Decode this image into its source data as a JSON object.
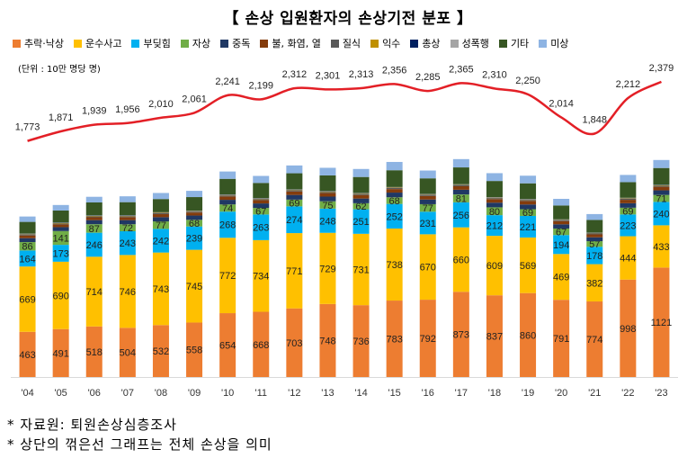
{
  "chart_data": {
    "type": "bar",
    "stacked": true,
    "title": "【 손상 입원환자의 손상기전 분포 】",
    "unit_label": "(단위 : 10만 명당 명)",
    "categories": [
      "'04",
      "'05",
      "'06",
      "'07",
      "'08",
      "'09",
      "'10",
      "'11",
      "'12",
      "'13",
      "'14",
      "'15",
      "'16",
      "'17",
      "'18",
      "'19",
      "'20",
      "'21",
      "'22",
      "'23"
    ],
    "series": [
      {
        "name": "추락·낙상",
        "color": "#ed7d31",
        "values": [
          463,
          491,
          518,
          504,
          532,
          558,
          654,
          668,
          703,
          748,
          736,
          783,
          792,
          873,
          837,
          860,
          791,
          774,
          998,
          1121
        ],
        "labeled": true
      },
      {
        "name": "운수사고",
        "color": "#ffc000",
        "values": [
          669,
          690,
          714,
          746,
          743,
          745,
          772,
          734,
          771,
          729,
          731,
          738,
          670,
          660,
          609,
          569,
          469,
          382,
          444,
          433
        ],
        "labeled": true
      },
      {
        "name": "부딪힘",
        "color": "#00b0f0",
        "values": [
          164,
          173,
          246,
          243,
          242,
          239,
          268,
          263,
          274,
          248,
          251,
          252,
          231,
          256,
          212,
          221,
          194,
          178,
          223,
          240
        ],
        "labeled": true
      },
      {
        "name": "자상",
        "color": "#70ad47",
        "values": [
          86,
          141,
          87,
          72,
          77,
          68,
          74,
          67,
          69,
          75,
          62,
          68,
          77,
          81,
          80,
          69,
          67,
          57,
          69,
          71
        ],
        "labeled": true
      },
      {
        "name": "중독",
        "color": "#203864",
        "values": [
          40,
          40,
          42,
          42,
          43,
          44,
          47,
          46,
          48,
          48,
          48,
          48,
          48,
          48,
          48,
          48,
          43,
          40,
          46,
          47
        ]
      },
      {
        "name": "불, 화염, 열",
        "color": "#843c0c",
        "values": [
          28,
          28,
          29,
          30,
          31,
          31,
          34,
          34,
          36,
          36,
          36,
          36,
          36,
          36,
          36,
          36,
          32,
          30,
          35,
          36
        ]
      },
      {
        "name": "질식",
        "color": "#595959",
        "values": [
          9,
          9,
          10,
          10,
          10,
          10,
          11,
          11,
          11,
          11,
          11,
          11,
          11,
          11,
          11,
          11,
          10,
          9,
          11,
          11
        ]
      },
      {
        "name": "익수",
        "color": "#bf9000",
        "values": [
          4,
          4,
          4,
          4,
          4,
          4,
          4,
          4,
          4,
          4,
          4,
          4,
          4,
          4,
          4,
          4,
          3,
          3,
          4,
          4
        ]
      },
      {
        "name": "총상",
        "color": "#002060",
        "values": [
          3,
          3,
          3,
          3,
          3,
          3,
          3,
          3,
          3,
          3,
          3,
          3,
          3,
          3,
          3,
          3,
          3,
          3,
          3,
          3
        ]
      },
      {
        "name": "성폭행",
        "color": "#a5a5a5",
        "values": [
          3,
          3,
          3,
          3,
          3,
          3,
          3,
          3,
          3,
          3,
          3,
          3,
          3,
          3,
          3,
          3,
          3,
          3,
          3,
          3
        ]
      },
      {
        "name": "기타",
        "color": "#375623",
        "values": [
          120,
          123,
          132,
          134,
          135,
          138,
          160,
          155,
          165,
          160,
          164,
          172,
          160,
          172,
          165,
          160,
          142,
          130,
          160,
          172
        ]
      },
      {
        "name": "미상",
        "color": "#8eb4e3",
        "values": [
          55,
          57,
          58,
          60,
          62,
          64,
          75,
          72,
          80,
          78,
          82,
          85,
          80,
          85,
          80,
          78,
          68,
          60,
          74,
          82
        ]
      }
    ],
    "total_line": {
      "name": "전체 손상",
      "color": "#e31f26",
      "values": [
        1773,
        1871,
        1939,
        1956,
        2010,
        2061,
        2241,
        2199,
        2312,
        2301,
        2313,
        2356,
        2285,
        2365,
        2310,
        2250,
        2014,
        1848,
        2212,
        2379
      ]
    },
    "ylim": [
      0,
      2500
    ],
    "grid": false,
    "legend_position": "top"
  },
  "footnotes": [
    "* 자료원: 퇴원손상심층조사",
    "* 상단의 꺾은선 그래프는 전체 손상을 의미"
  ]
}
